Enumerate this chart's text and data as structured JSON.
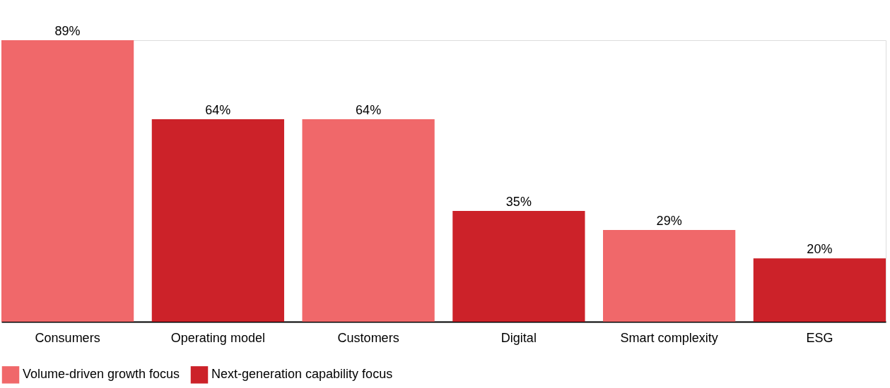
{
  "chart_data": {
    "type": "bar",
    "categories": [
      "Consumers",
      "Operating model",
      "Customers",
      "Digital",
      "Smart complexity",
      "ESG"
    ],
    "series": [
      {
        "name": "Volume-driven growth focus",
        "color": "#f0686a",
        "values": [
          89,
          null,
          64,
          null,
          29,
          null
        ],
        "value_labels": [
          "89%",
          null,
          "64%",
          null,
          "29%",
          null
        ]
      },
      {
        "name": "Next-generation capability focus",
        "color": "#cc2229",
        "values": [
          null,
          64,
          null,
          35,
          null,
          20
        ],
        "value_labels": [
          null,
          "64%",
          null,
          "35%",
          null,
          "20%"
        ]
      }
    ],
    "tick_labels": "x",
    "grid": false,
    "legend": "bottom"
  }
}
